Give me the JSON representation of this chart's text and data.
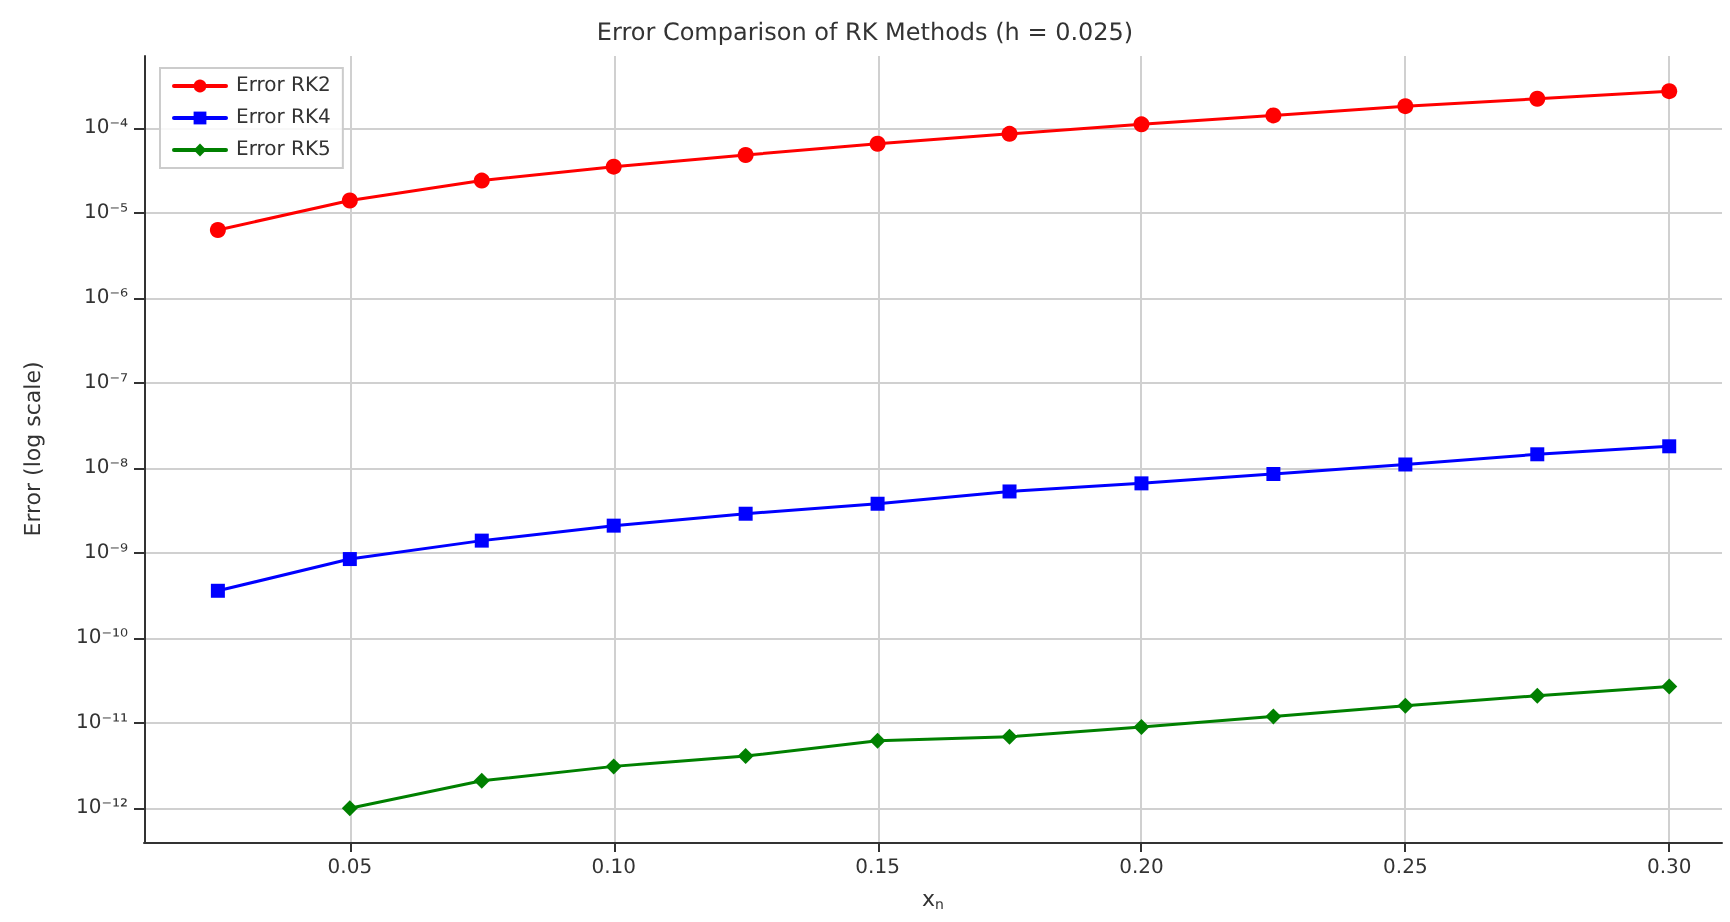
{
  "chart_data": {
    "type": "line",
    "title": "Error Comparison of RK Methods (h = 0.025)",
    "xlabel": "x$_{n}$",
    "ylabel": "Error (log scale)",
    "log": true,
    "grid": true,
    "legend": "top left",
    "xlim": [
      0.011,
      0.31
    ],
    "xticks": [
      0.05,
      {
        "value": 0.1,
        "label": "0.10"
      },
      0.15,
      {
        "value": 0.2,
        "label": "0.20"
      },
      0.25,
      {
        "value": 0.3,
        "label": "0.30"
      }
    ],
    "ylim": [
      4e-13,
      0.0007
    ],
    "yticks": [
      {
        "value": 1e-12,
        "label": "10⁻¹²"
      },
      {
        "value": 1e-11,
        "label": "10⁻¹¹"
      },
      {
        "value": 1e-10,
        "label": "10⁻¹⁰"
      },
      {
        "value": 1e-09,
        "label": "10⁻⁹"
      },
      {
        "value": 1e-08,
        "label": "10⁻⁸"
      },
      {
        "value": 1e-07,
        "label": "10⁻⁷"
      },
      {
        "value": 1e-06,
        "label": "10⁻⁶"
      },
      {
        "value": 1e-05,
        "label": "10⁻⁵"
      },
      {
        "value": 0.0001,
        "label": "10⁻⁴"
      }
    ],
    "x": [
      0.025,
      0.05,
      0.075,
      0.1,
      0.125,
      0.15,
      0.175,
      0.2,
      0.225,
      0.25,
      0.275,
      0.3
    ],
    "series": [
      {
        "name": "Error RK2",
        "color": "#ff0000",
        "marker": "circle",
        "values": [
          6.3e-06,
          1.4e-05,
          2.4e-05,
          3.5e-05,
          4.8e-05,
          6.5e-05,
          8.5e-05,
          0.00011,
          0.00014,
          0.00018,
          0.00022,
          0.00027
        ]
      },
      {
        "name": "Error RK4",
        "color": "#0000ff",
        "marker": "square",
        "values": [
          3.6e-10,
          8.5e-10,
          1.4e-09,
          2.1e-09,
          2.9e-09,
          3.8e-09,
          5.3e-09,
          6.6e-09,
          8.5e-09,
          1.1e-08,
          1.45e-08,
          1.8e-08
        ]
      },
      {
        "name": "Error RK5",
        "color": "#008000",
        "marker": "diamond",
        "values": [
          null,
          1e-12,
          2.1e-12,
          3.1e-12,
          4.1e-12,
          6.2e-12,
          6.9e-12,
          9e-12,
          1.2e-11,
          1.6e-11,
          2.1e-11,
          2.7e-11
        ]
      }
    ]
  }
}
